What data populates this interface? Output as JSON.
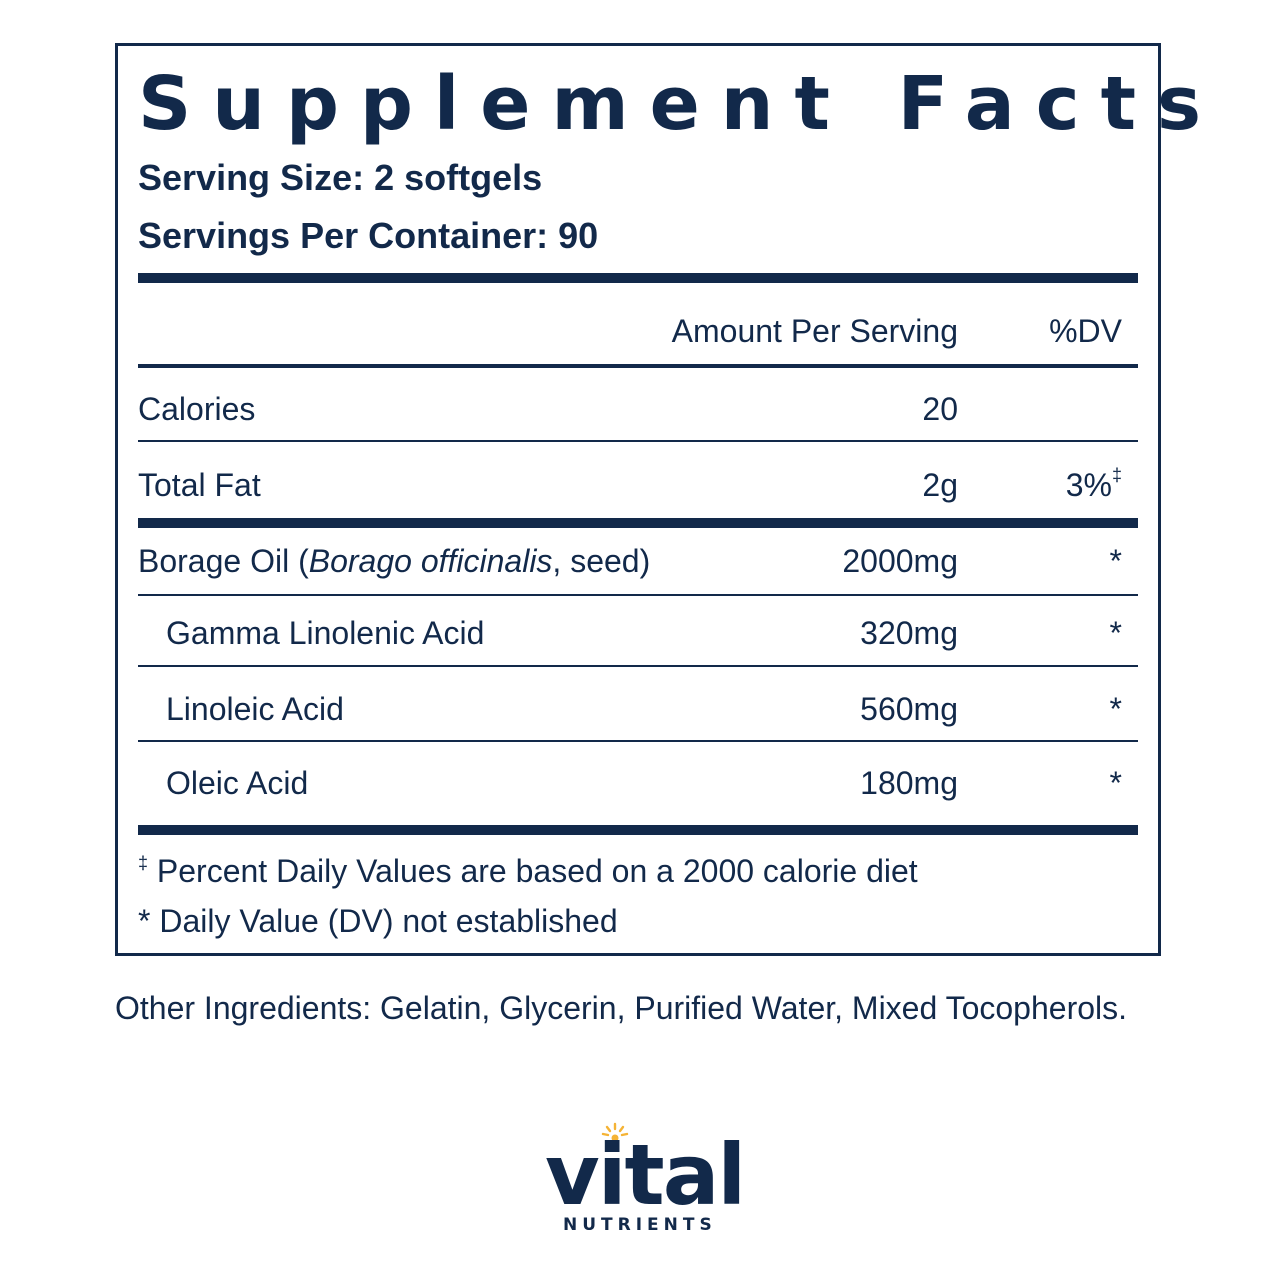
{
  "title": "Supplement Facts",
  "serving_size": "Serving Size: 2 softgels",
  "servings_per_container": "Servings Per Container: 90",
  "header": {
    "amount": "Amount Per Serving",
    "dv": "%DV"
  },
  "rows": [
    {
      "name": "Calories",
      "amount": "20",
      "dv": ""
    },
    {
      "name": "Total Fat",
      "amount": "2g",
      "dv": "3%",
      "dv_mark": "‡"
    },
    {
      "name_plain": "Borage Oil (",
      "name_italic": "Borago officinalis",
      "name_rest": ", seed)",
      "amount": "2000mg",
      "dv": "*"
    },
    {
      "name": "Gamma Linolenic Acid",
      "amount": "320mg",
      "dv": "*"
    },
    {
      "name": "Linoleic Acid",
      "amount": "560mg",
      "dv": "*"
    },
    {
      "name": "Oleic Acid",
      "amount": "180mg",
      "dv": "*"
    }
  ],
  "footnotes": {
    "mark": "‡",
    "note1": " Percent Daily Values are based on a 2000 calorie diet",
    "note2": "* Daily Value (DV) not established"
  },
  "other_ingredients": "Other Ingredients: Gelatin, Glycerin, Purified Water, Mixed Tocopherols.",
  "logo": {
    "word": "vital",
    "sub": "NUTRIENTS",
    "sun_color": "#f5b335"
  },
  "colors": {
    "ink": "#12294a"
  }
}
